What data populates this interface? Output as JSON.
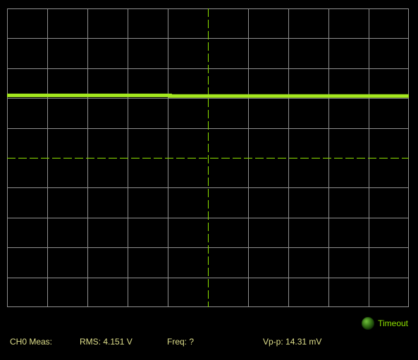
{
  "colors": {
    "background": "#000000",
    "grid": "#8f8f8f",
    "center_axis": "#8de000",
    "trace": "#a4e81e",
    "measurement_text": "#dede8a",
    "timeout_text": "#8de000"
  },
  "chart_data": {
    "type": "line",
    "title": "",
    "xlabel": "",
    "ylabel": "",
    "divisions": {
      "x": 10,
      "y": 10
    },
    "xlim": [
      0,
      10
    ],
    "ylim": [
      -5,
      5
    ],
    "grid": true,
    "center_axes": "dashed",
    "series": [
      {
        "x": [
          0,
          4.06,
          4.06,
          10
        ],
        "values": [
          2.09,
          2.09,
          2.07,
          2.07
        ]
      }
    ]
  },
  "status": {
    "indicator_icon": "status-led-icon",
    "indicator_label": "Timeout"
  },
  "measurements": {
    "channel_label": "CH0 Meas:",
    "rms": "RMS:  4.151 V",
    "freq": "Freq:  ?",
    "vpp": "Vp-p:  14.31 mV"
  }
}
